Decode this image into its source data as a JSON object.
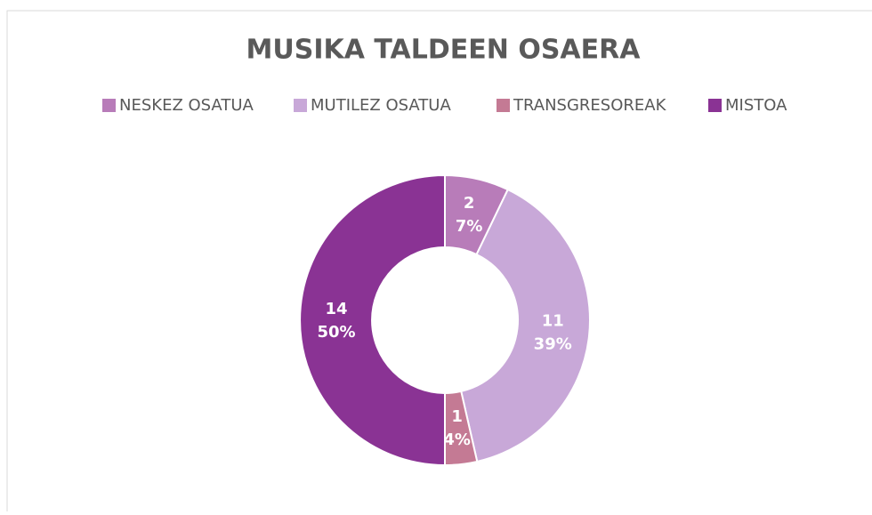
{
  "chart_data": {
    "type": "donut",
    "title": "MUSIKA TALDEEN OSAERA",
    "categories": [
      "NESKEZ OSATUA",
      "MUTILEZ OSATUA",
      "TRANSGRESOREAK",
      "MISTOA"
    ],
    "values": [
      2,
      11,
      1,
      14
    ],
    "percent_labels": [
      "7%",
      "39%",
      "4%",
      "50%"
    ],
    "colors": [
      "#b87cb9",
      "#c8a8d8",
      "#c47a94",
      "#8a3394"
    ],
    "legend": "top"
  }
}
